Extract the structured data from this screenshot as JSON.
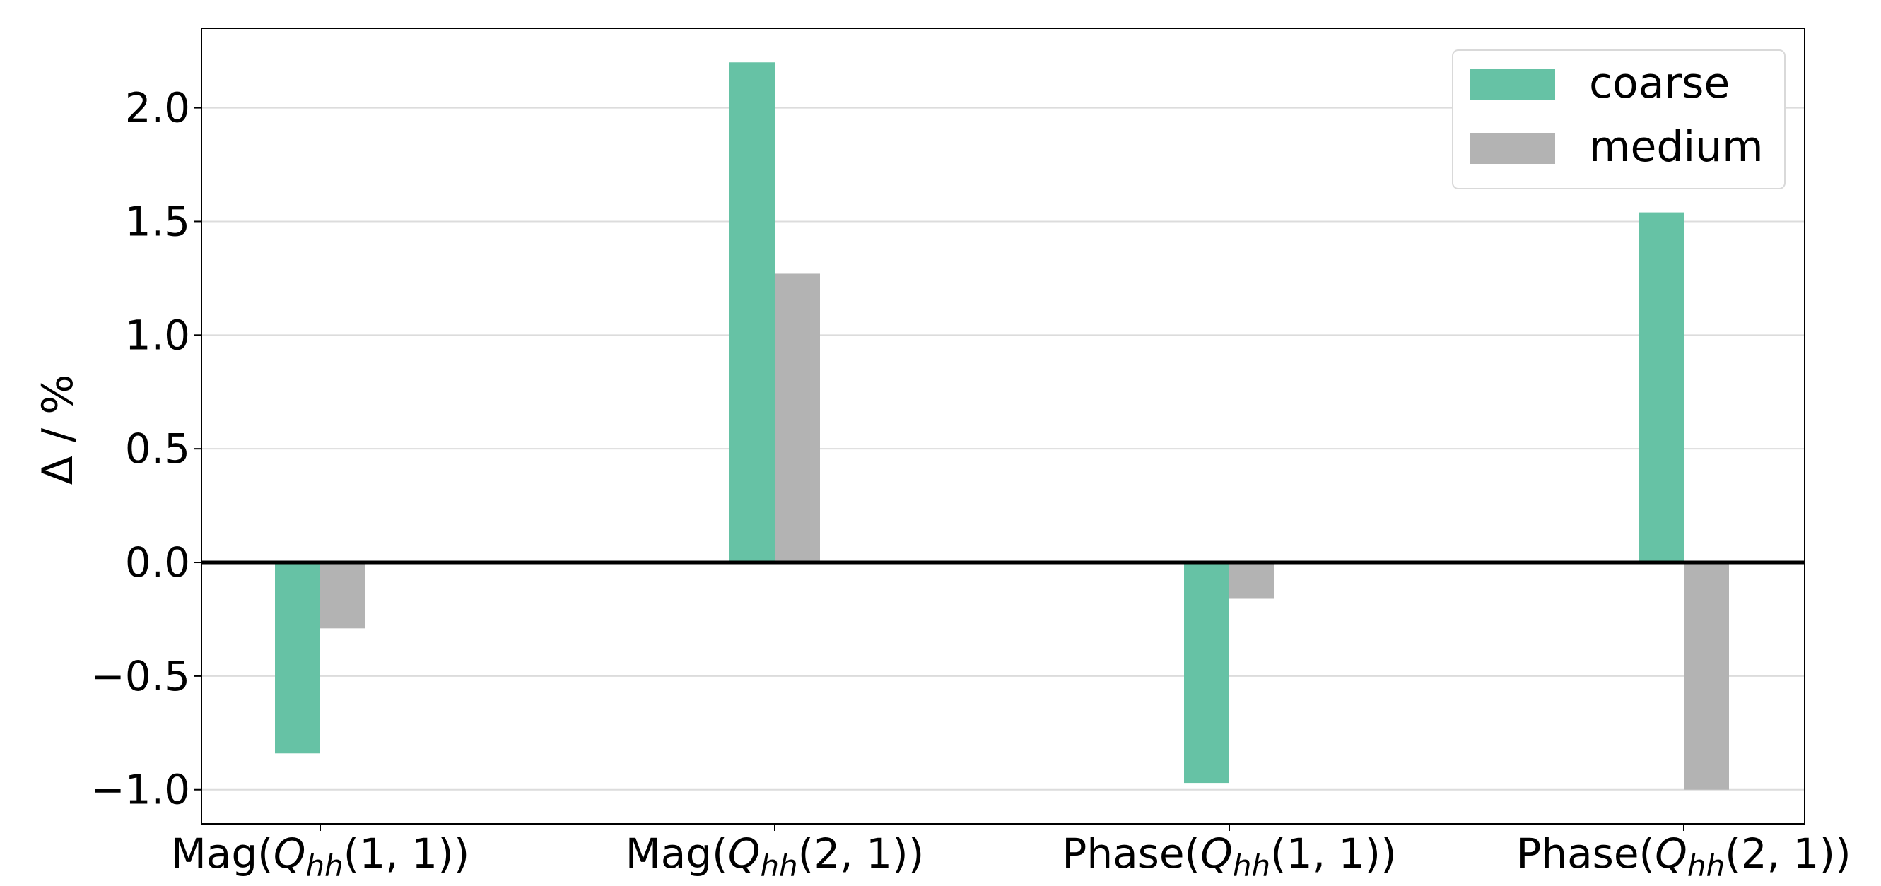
{
  "chart_data": {
    "type": "bar",
    "categories": [
      {
        "prefix": "Mag",
        "row": "1",
        "col": "1"
      },
      {
        "prefix": "Mag",
        "row": "2",
        "col": "1"
      },
      {
        "prefix": "Phase",
        "row": "1",
        "col": "1"
      },
      {
        "prefix": "Phase",
        "row": "2",
        "col": "1"
      }
    ],
    "category_symbol": "Q",
    "category_subscript": "hh",
    "series": [
      {
        "name": "coarse",
        "values": [
          -0.84,
          2.2,
          -0.97,
          1.54
        ],
        "color": "#66c2a5"
      },
      {
        "name": "medium",
        "values": [
          -0.29,
          1.27,
          -0.16,
          -1.0
        ],
        "color": "#b3b3b3"
      }
    ],
    "ylabel": "Δ / %",
    "ylim": [
      -1.15,
      2.35
    ],
    "yticks": [
      "2.0",
      "1.5",
      "1.0",
      "0.5",
      "0.0",
      "−0.5",
      "−1.0"
    ],
    "ytick_values": [
      2.0,
      1.5,
      1.0,
      0.5,
      0.0,
      -0.5,
      -1.0
    ],
    "grid": "horizontal",
    "zero_line": true,
    "legend_position": "top-right"
  }
}
